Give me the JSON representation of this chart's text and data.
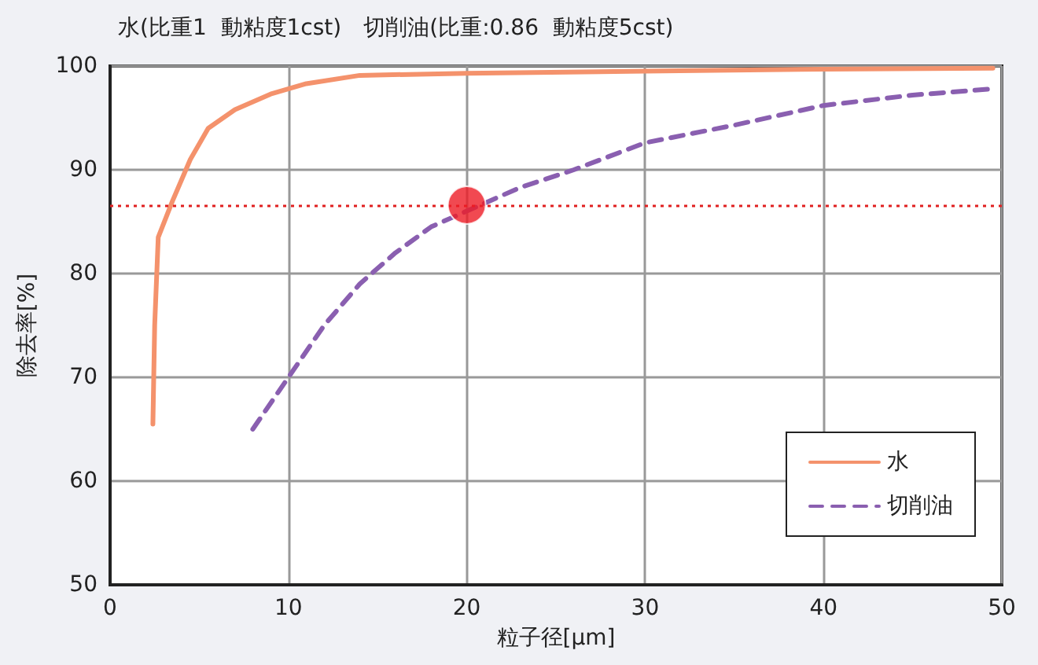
{
  "chart_data": {
    "type": "line",
    "title": "水(比重1  動粘度1cst)　切削油(比重:0.86  動粘度5cst)",
    "xlabel": "粒子径[μm]",
    "ylabel": "除去率[%]",
    "xlim": [
      0,
      50
    ],
    "xticks": [
      0,
      10,
      20,
      30,
      40,
      50
    ],
    "ylim": [
      50,
      100
    ],
    "yticks": [
      50,
      60,
      70,
      80,
      90,
      100
    ],
    "grid": true,
    "legend": "bottom right",
    "marker": "none",
    "series": [
      {
        "name": "水",
        "color": "#f4926c",
        "line_style": "solid",
        "x": [
          2.4,
          2.5,
          2.7,
          3.5,
          4.5,
          5.5,
          7,
          9,
          11,
          14,
          20,
          30,
          40,
          49.5
        ],
        "values": [
          65.5,
          75,
          83.5,
          87,
          91,
          94,
          95.8,
          97.3,
          98.3,
          99.1,
          99.3,
          99.5,
          99.7,
          99.8
        ]
      },
      {
        "name": "切削油",
        "color": "#8a5fb0",
        "line_style": "dashed",
        "x": [
          8,
          10,
          12,
          14,
          16,
          18,
          23,
          26,
          30,
          35,
          40,
          45,
          49.5
        ],
        "values": [
          65,
          70,
          75,
          79,
          82,
          84.5,
          88.3,
          90,
          92.6,
          94.3,
          96.2,
          97.2,
          97.8
        ]
      },
      {
        "type": "scatter",
        "color": "#ee1c25",
        "marker": "circle",
        "x": [
          20
        ],
        "values": [
          86.6
        ]
      }
    ],
    "ref_lines": [
      {
        "axis": "y",
        "value": 86.5,
        "color": "#e02020",
        "line_style": "dotted"
      }
    ]
  }
}
